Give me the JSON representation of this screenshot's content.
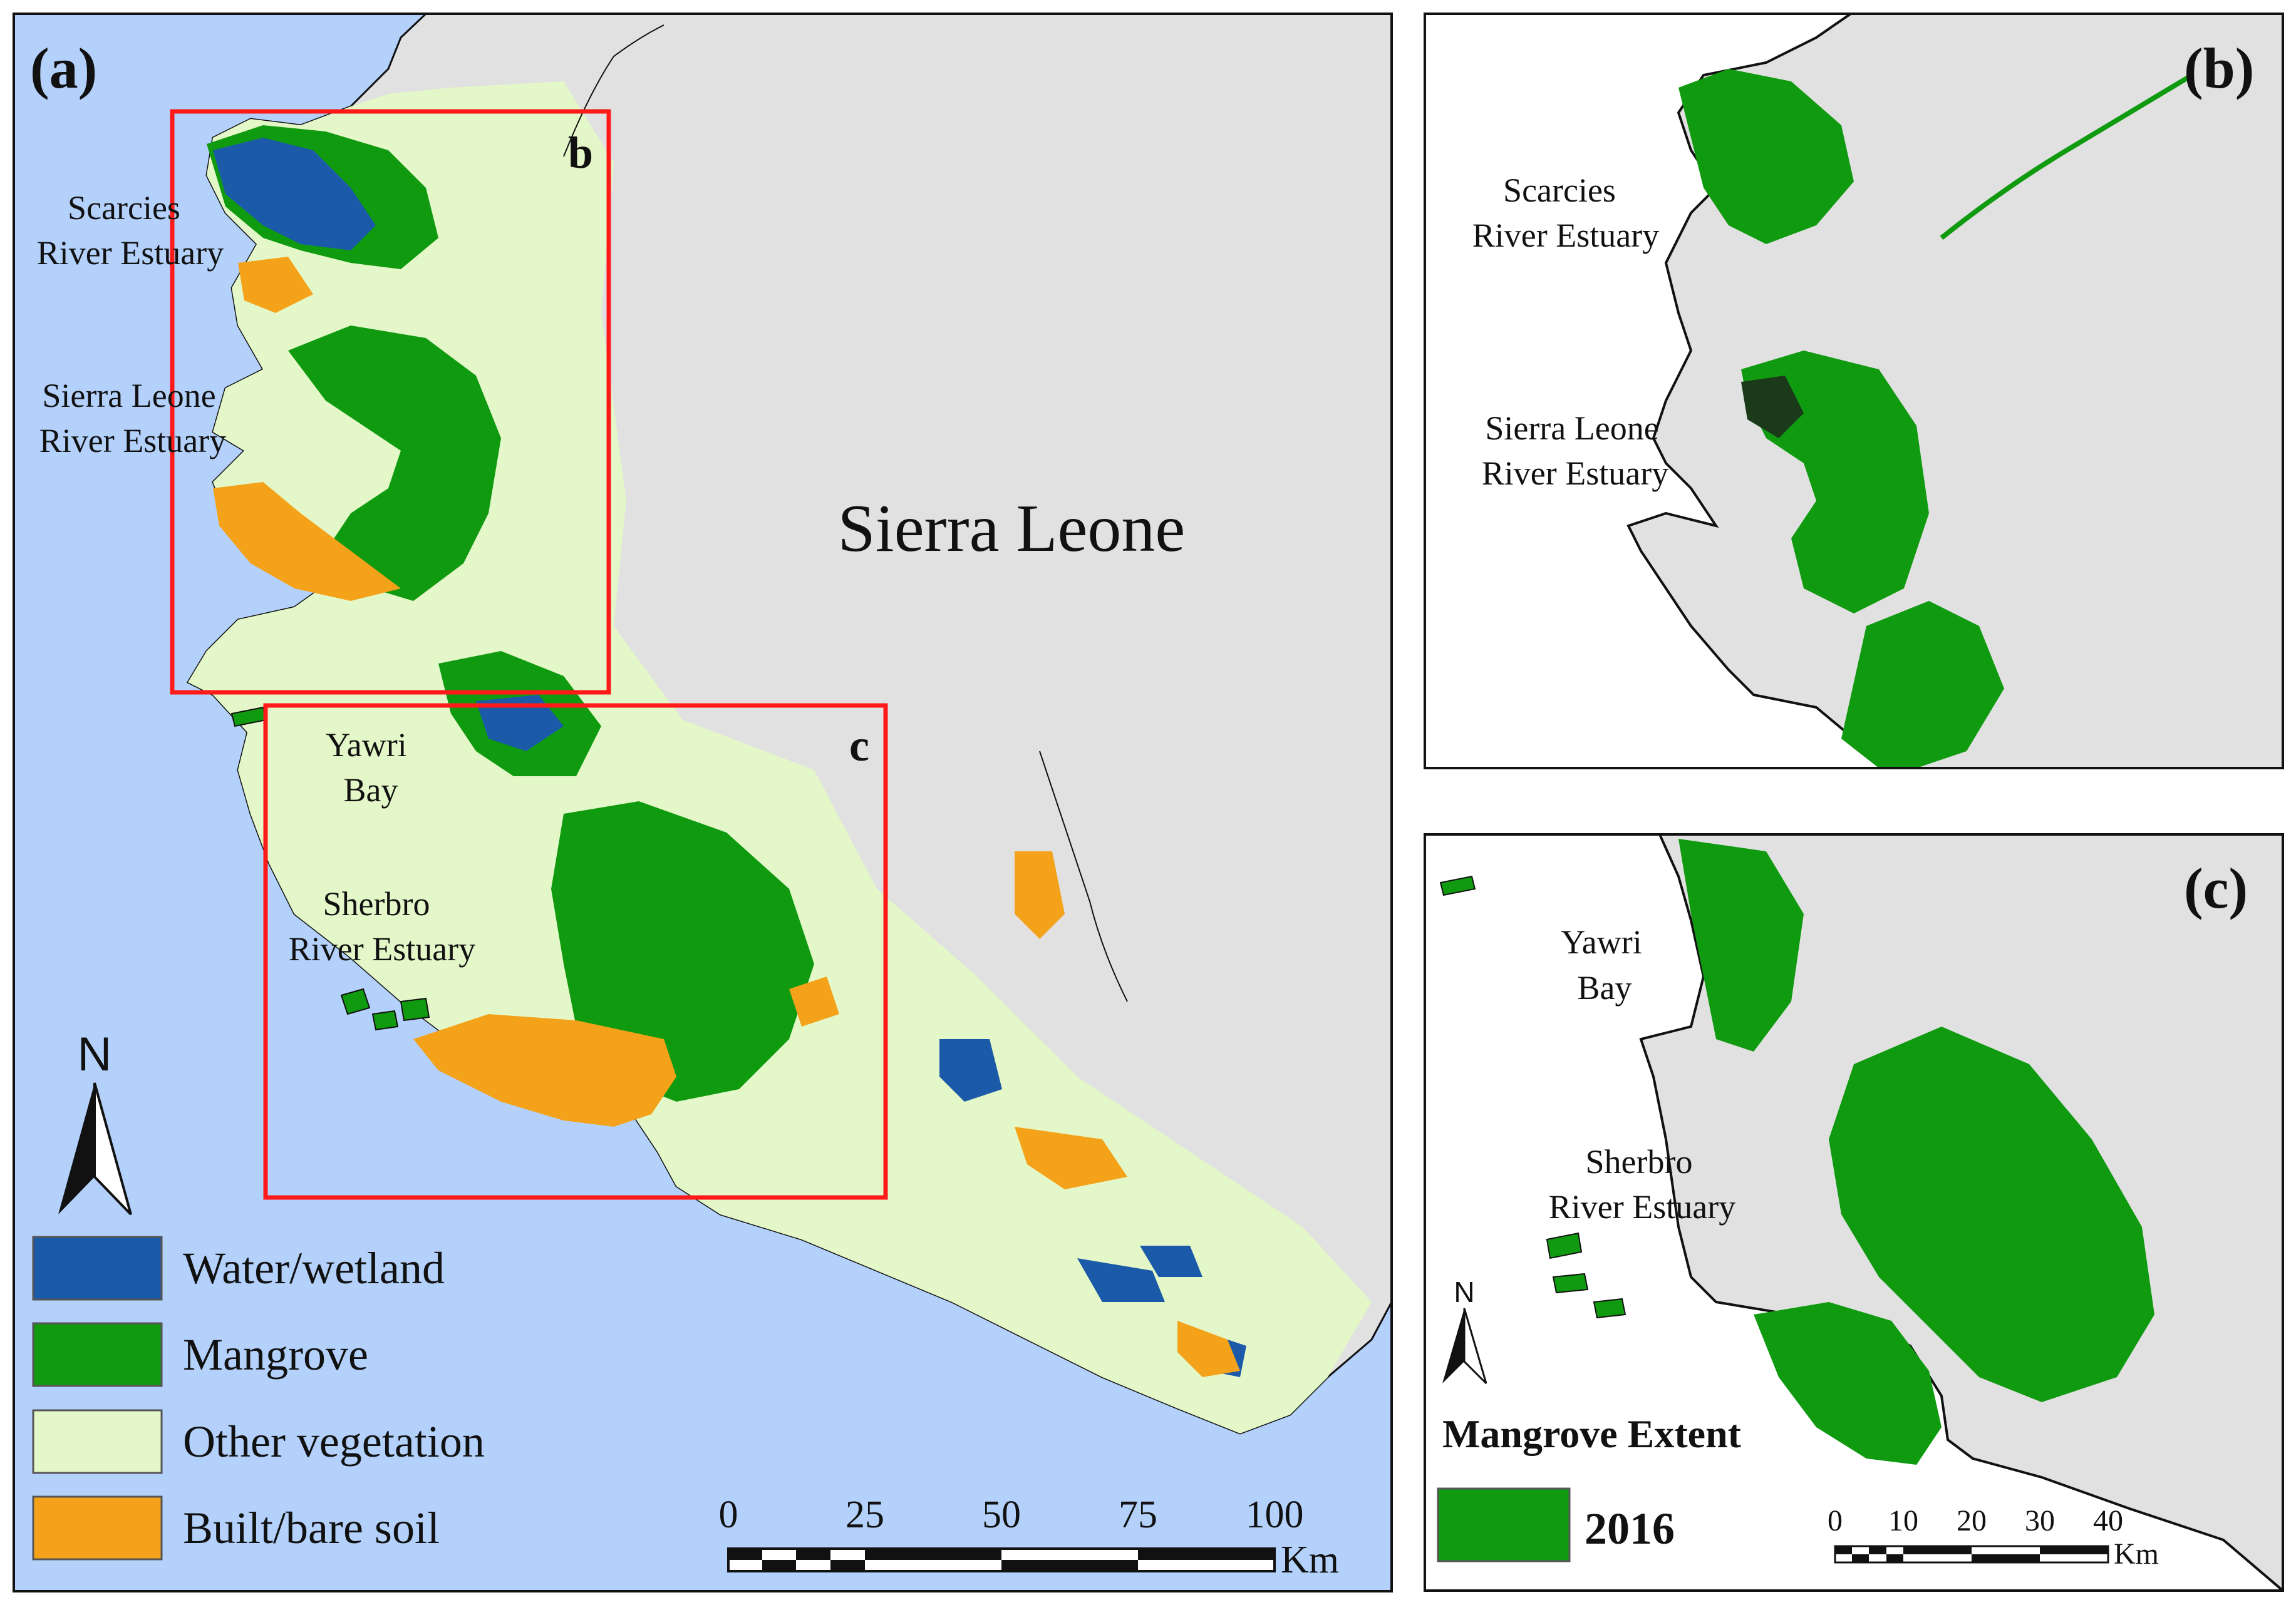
{
  "colors": {
    "ocean": "#b3d1fb",
    "land": "#e1e1e1",
    "water_wetland": "#1a5aa8",
    "mangrove": "#109a10",
    "other_vegetation": "#e4f7c8",
    "built_bare_soil": "#f4a21a",
    "inset_box": "#ff1a1a",
    "frame": "#111111"
  },
  "panel_a": {
    "label": "(a)",
    "country_label": "Sierra Leone",
    "box_b_label": "b",
    "box_c_label": "c",
    "places": [
      {
        "line1": "Scarcies",
        "line2": "River Estuary"
      },
      {
        "line1": "Sierra Leone",
        "line2": "River Estuary"
      },
      {
        "line1": "Yawri",
        "line2": "Bay"
      },
      {
        "line1": "Sherbro",
        "line2": "River Estuary"
      }
    ],
    "north_arrow": {
      "label": "N",
      "icon": "north-arrow-icon"
    },
    "legend": [
      {
        "label": "Water/wetland",
        "color": "#1a5aa8"
      },
      {
        "label": "Mangrove",
        "color": "#109a10"
      },
      {
        "label": "Other vegetation",
        "color": "#e4f7c8"
      },
      {
        "label": "Built/bare soil",
        "color": "#f4a21a"
      }
    ],
    "scale_bar": {
      "ticks": [
        "0",
        "25",
        "50",
        "75",
        "100"
      ],
      "unit": "Km"
    }
  },
  "panel_b": {
    "label": "(b)",
    "places": [
      {
        "line1": "Scarcies",
        "line2": "River Estuary"
      },
      {
        "line1": "Sierra Leone",
        "line2": "River Estuary"
      }
    ]
  },
  "panel_c": {
    "label": "(c)",
    "places": [
      {
        "line1": "Yawri",
        "line2": "Bay"
      },
      {
        "line1": "Sherbro",
        "line2": "River Estuary"
      }
    ],
    "north_arrow": {
      "label": "N",
      "icon": "north-arrow-icon"
    },
    "legend_title": "Mangrove Extent",
    "legend_item": {
      "label": "2016",
      "color": "#109a10"
    },
    "scale_bar": {
      "ticks": [
        "0",
        "10",
        "20",
        "30",
        "40"
      ],
      "unit": "Km"
    }
  }
}
